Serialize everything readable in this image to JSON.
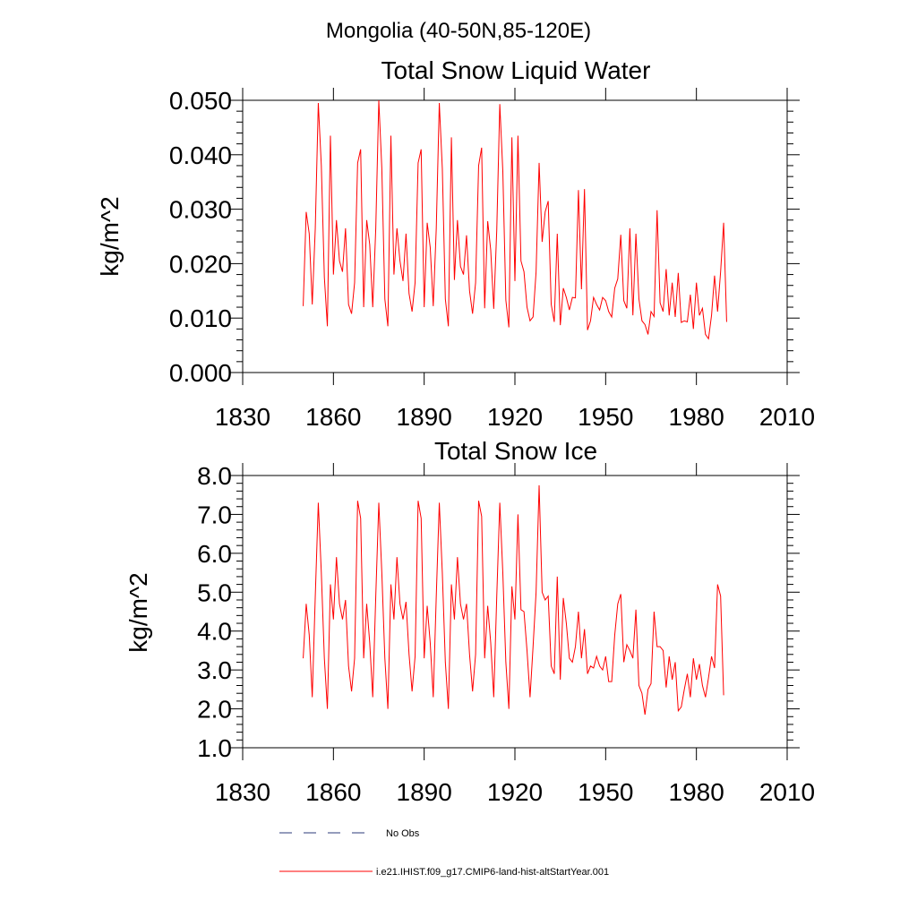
{
  "figure_title": "Mongolia (40-50N,85-120E)",
  "colors": {
    "series": "#ff0000",
    "obs": "#2b3a7a",
    "axis": "#000000"
  },
  "legend": [
    {
      "label": "No Obs",
      "style": "dashed"
    },
    {
      "label": "i.e21.IHIST.f09_g17.CMIP6-land-hist-altStartYear.001",
      "style": "solid"
    }
  ],
  "chart_data": [
    {
      "type": "line",
      "title": "Total Snow Liquid Water",
      "xlabel": "",
      "ylabel": "kg/m^2",
      "xlim": [
        1830,
        2010
      ],
      "ylim": [
        0,
        0.05
      ],
      "xticks": [
        1830,
        1860,
        1890,
        1920,
        1950,
        1980,
        2010
      ],
      "xtick_labels": [
        "1830",
        "1860",
        "1890",
        "1920",
        "1950",
        "1980",
        "2010"
      ],
      "yticks": [
        0,
        0.01,
        0.02,
        0.03,
        0.04,
        0.05
      ],
      "ytick_labels": [
        "0.000",
        "0.010",
        "0.020",
        "0.030",
        "0.040",
        "0.050"
      ],
      "grid": false,
      "series": [
        {
          "name": "i.e21.IHIST.f09_g17.CMIP6-land-hist-altStartYear.001",
          "x_start": 1850,
          "x_step": 1,
          "values": [
            0.0122,
            0.0295,
            0.0255,
            0.0125,
            0.0265,
            0.0495,
            0.038,
            0.0175,
            0.0085,
            0.0435,
            0.018,
            0.028,
            0.0205,
            0.0185,
            0.0265,
            0.0125,
            0.0108,
            0.0165,
            0.0385,
            0.041,
            0.012,
            0.028,
            0.0235,
            0.012,
            0.0265,
            0.05,
            0.0375,
            0.0135,
            0.0085,
            0.0435,
            0.018,
            0.0265,
            0.0205,
            0.0168,
            0.0255,
            0.0145,
            0.0112,
            0.0165,
            0.0385,
            0.041,
            0.012,
            0.0275,
            0.023,
            0.0122,
            0.0265,
            0.0495,
            0.0375,
            0.0135,
            0.0085,
            0.0432,
            0.017,
            0.028,
            0.0195,
            0.018,
            0.0252,
            0.015,
            0.0108,
            0.0165,
            0.038,
            0.0413,
            0.0118,
            0.0278,
            0.0225,
            0.0117,
            0.0262,
            0.0493,
            0.037,
            0.0133,
            0.0083,
            0.0432,
            0.0168,
            0.0435,
            0.0205,
            0.0185,
            0.012,
            0.0095,
            0.0102,
            0.0185,
            0.0385,
            0.024,
            0.0295,
            0.0315,
            0.0125,
            0.0093,
            0.0255,
            0.0087,
            0.0155,
            0.0138,
            0.0115,
            0.0138,
            0.0137,
            0.0335,
            0.0153,
            0.0337,
            0.0078,
            0.0095,
            0.0138,
            0.0125,
            0.0115,
            0.0138,
            0.0132,
            0.0112,
            0.0102,
            0.0155,
            0.0172,
            0.0253,
            0.0132,
            0.0118,
            0.0265,
            0.0105,
            0.0255,
            0.0135,
            0.0095,
            0.0088,
            0.007,
            0.0112,
            0.0103,
            0.0298,
            0.0128,
            0.0112,
            0.019,
            0.0105,
            0.0165,
            0.0102,
            0.0183,
            0.0092,
            0.0095,
            0.0093,
            0.0143,
            0.008,
            0.0165,
            0.0105,
            0.0118,
            0.007,
            0.0062,
            0.0105,
            0.0178,
            0.0112,
            0.0185,
            0.0275,
            0.0093
          ]
        }
      ]
    },
    {
      "type": "line",
      "title": "Total Snow Ice",
      "xlabel": "",
      "ylabel": "kg/m^2",
      "xlim": [
        1830,
        2010
      ],
      "ylim": [
        1,
        8
      ],
      "xticks": [
        1830,
        1860,
        1890,
        1920,
        1950,
        1980,
        2010
      ],
      "xtick_labels": [
        "1830",
        "1860",
        "1890",
        "1920",
        "1950",
        "1980",
        "2010"
      ],
      "yticks": [
        1,
        2,
        3,
        4,
        5,
        6,
        7,
        8
      ],
      "ytick_labels": [
        "1.0",
        "2.0",
        "3.0",
        "4.0",
        "5.0",
        "6.0",
        "7.0",
        "8.0"
      ],
      "grid": false,
      "series": [
        {
          "name": "i.e21.IHIST.f09_g17.CMIP6-land-hist-altStartYear.001",
          "x_start": 1850,
          "x_step": 1,
          "values": [
            3.3,
            4.7,
            3.9,
            2.3,
            4.9,
            7.3,
            5.5,
            3.3,
            2.0,
            5.2,
            4.3,
            5.9,
            4.7,
            4.3,
            4.8,
            3.1,
            2.45,
            3.3,
            7.35,
            6.9,
            3.3,
            4.7,
            3.7,
            2.3,
            4.9,
            7.3,
            5.5,
            3.3,
            2.0,
            5.2,
            4.3,
            5.9,
            4.7,
            4.3,
            4.75,
            3.4,
            2.45,
            3.35,
            7.35,
            6.9,
            3.3,
            4.65,
            3.7,
            2.3,
            4.9,
            7.3,
            5.5,
            3.2,
            2.0,
            5.2,
            4.3,
            5.9,
            4.7,
            4.3,
            4.7,
            3.4,
            2.45,
            3.4,
            7.35,
            6.95,
            3.3,
            4.65,
            3.7,
            2.3,
            4.9,
            7.3,
            5.5,
            3.2,
            2.0,
            5.15,
            4.3,
            7.0,
            4.55,
            4.5,
            3.5,
            2.3,
            3.6,
            5.0,
            7.75,
            5.0,
            4.8,
            4.9,
            3.1,
            2.9,
            5.4,
            2.75,
            4.85,
            4.2,
            3.3,
            3.2,
            3.6,
            4.5,
            3.3,
            4.05,
            2.9,
            3.1,
            3.05,
            3.35,
            3.1,
            3.0,
            3.35,
            2.7,
            2.7,
            3.9,
            4.7,
            4.95,
            3.2,
            3.65,
            3.5,
            3.3,
            4.55,
            2.6,
            2.4,
            1.85,
            2.5,
            2.65,
            4.5,
            3.6,
            3.6,
            3.5,
            2.55,
            3.35,
            2.75,
            3.2,
            1.95,
            2.05,
            2.5,
            2.9,
            2.3,
            3.3,
            2.75,
            3.15,
            2.6,
            2.3,
            2.8,
            3.35,
            3.05,
            5.2,
            4.9,
            2.35
          ]
        }
      ]
    }
  ]
}
